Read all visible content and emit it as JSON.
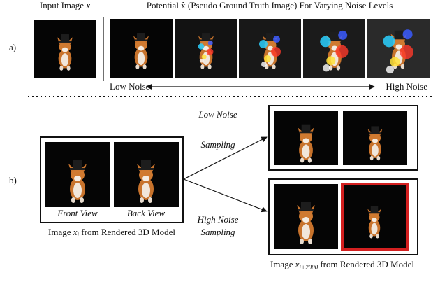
{
  "panel_a": {
    "label": "a)",
    "input_title": "Input Image",
    "input_var": "x",
    "potential_title": "Potential x̂ (Pseudo Ground Truth Image) For Varying Noise Levels",
    "low_noise": "Low Noise",
    "high_noise": "High Noise"
  },
  "panel_b": {
    "label": "b)",
    "front_view": "Front View",
    "back_view": "Back View",
    "source_caption": {
      "prefix": "Image",
      "var": "x",
      "sub": "i",
      "suffix": "from Rendered 3D Model"
    },
    "low_sampling": [
      "Low Noise",
      "Sampling"
    ],
    "high_sampling": [
      "High Noise",
      "Sampling"
    ],
    "target_caption": {
      "prefix": "Image",
      "var": "x",
      "sub": "i+2000",
      "suffix": "from Rendered 3D Model"
    }
  }
}
